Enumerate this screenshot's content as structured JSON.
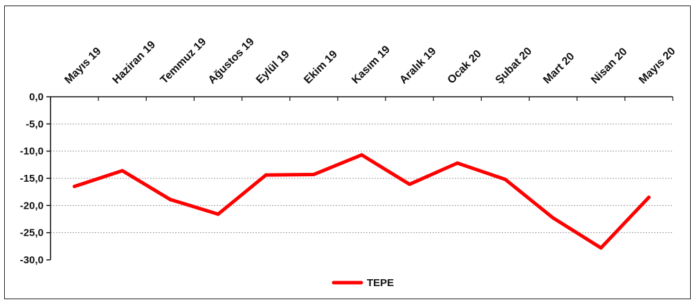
{
  "chart_data": {
    "type": "line",
    "categories": [
      "Mayıs 19",
      "Haziran 19",
      "Temmuz 19",
      "Ağustos 19",
      "Eylül 19",
      "Ekim 19",
      "Kasım 19",
      "Aralık 19",
      "Ocak 20",
      "Şubat 20",
      "Mart 20",
      "Nisan 20",
      "Mayıs 20"
    ],
    "series": [
      {
        "name": "TEPE",
        "color": "#ff0000",
        "values": [
          -16.5,
          -13.6,
          -18.9,
          -21.6,
          -14.4,
          -14.3,
          -10.7,
          -16.1,
          -12.2,
          -15.2,
          -22.3,
          -27.8,
          -18.5
        ]
      }
    ],
    "ylim": [
      -30,
      0
    ],
    "yticks": [
      "0,0",
      "-5,0",
      "-10,0",
      "-15,0",
      "-20,0",
      "-25,0",
      "-30,0"
    ],
    "grid": true,
    "x_axis_position": "top",
    "legend_position": "bottom-center",
    "title": "",
    "xlabel": "",
    "ylabel": ""
  }
}
